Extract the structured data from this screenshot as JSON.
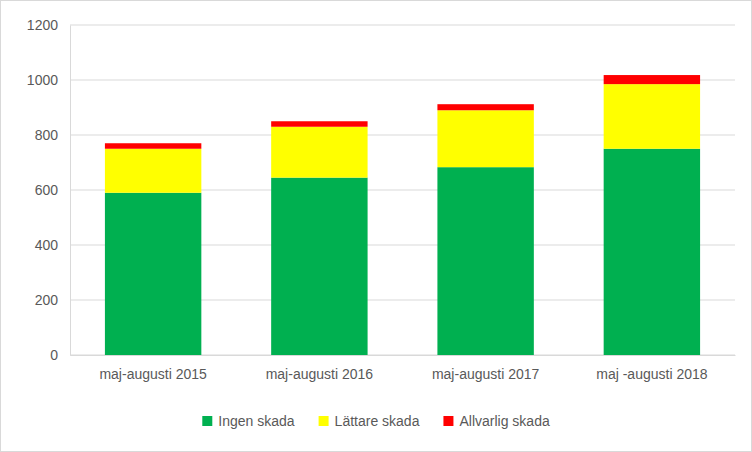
{
  "chart_data": {
    "type": "bar",
    "stacked": true,
    "categories": [
      "maj-augusti 2015",
      "maj-augusti 2016",
      "maj-augusti 2017",
      "maj -augusti 2018"
    ],
    "series": [
      {
        "name": "Ingen skada",
        "color": "#00b050",
        "values": [
          590,
          645,
          683,
          750
        ]
      },
      {
        "name": "Lättare skada",
        "color": "#ffff00",
        "values": [
          160,
          185,
          207,
          235
        ]
      },
      {
        "name": "Allvarlig skada",
        "color": "#ff0000",
        "values": [
          20,
          20,
          22,
          33
        ]
      }
    ],
    "ylim": [
      0,
      1200
    ],
    "yticks": [
      0,
      200,
      400,
      600,
      800,
      1000,
      1200
    ],
    "grid": true,
    "legend": "bottom"
  }
}
